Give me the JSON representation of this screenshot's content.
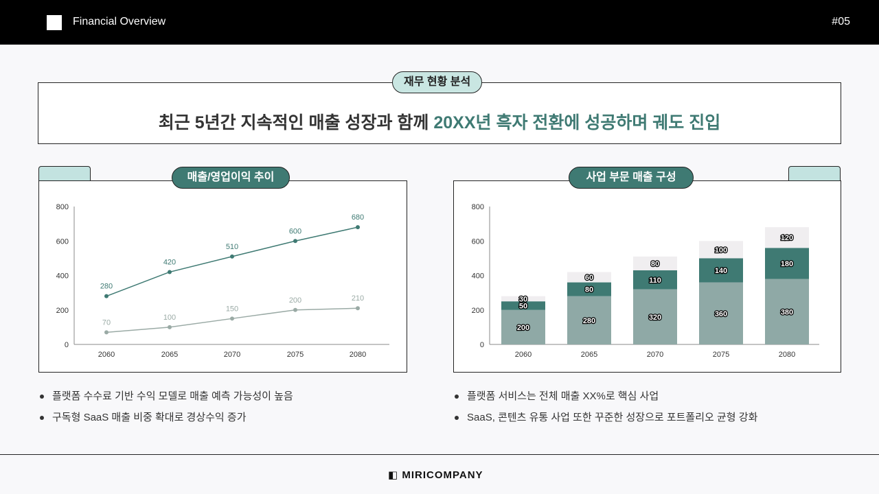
{
  "header": {
    "title": "Financial Overview",
    "page": "#05"
  },
  "summary": {
    "tag": "재무 현황 분석",
    "headline_pre": "최근 5년간 지속적인 매출 성장과 함께 ",
    "headline_accent": "20XX년 흑자 전환에 성공하며 궤도 진입"
  },
  "left": {
    "title": "매출/영업이익 추이",
    "bullets": [
      "플랫폼 수수료 기반 수익 모델로 매출 예측 가능성이 높음",
      "구독형 SaaS 매출 비중 확대로 경상수익 증가"
    ]
  },
  "right": {
    "title": "사업 부문 매출 구성",
    "bullets": [
      "플랫폼 서비스는 전체 매출 XX%로 핵심 사업",
      "SaaS, 콘텐츠 유통 사업 또한 꾸준한 성장으로 포트폴리오 균형 강화"
    ]
  },
  "footer": {
    "logo": "MIRICOMPANY"
  },
  "chart_data": [
    {
      "type": "line",
      "categories": [
        "2060",
        "2065",
        "2070",
        "2075",
        "2080"
      ],
      "ylim": [
        0,
        800
      ],
      "yticks": [
        0,
        200,
        400,
        600,
        800
      ],
      "grid": false,
      "series": [
        {
          "values": [
            280,
            420,
            510,
            600,
            680
          ],
          "color": "#3f7a73"
        },
        {
          "values": [
            70,
            100,
            150,
            200,
            210
          ],
          "color": "#9aaaa5"
        }
      ]
    },
    {
      "type": "bar",
      "stacked": true,
      "categories": [
        "2060",
        "2065",
        "2070",
        "2075",
        "2080"
      ],
      "ylim": [
        0,
        800
      ],
      "yticks": [
        0,
        200,
        400,
        600,
        800
      ],
      "grid": false,
      "series": [
        {
          "values": [
            200,
            280,
            320,
            360,
            380
          ],
          "color": "#8fa9a6"
        },
        {
          "values": [
            50,
            80,
            110,
            140,
            180
          ],
          "color": "#3f7a73"
        },
        {
          "values": [
            30,
            60,
            80,
            100,
            120
          ],
          "color": "#f0eef0"
        }
      ]
    }
  ]
}
